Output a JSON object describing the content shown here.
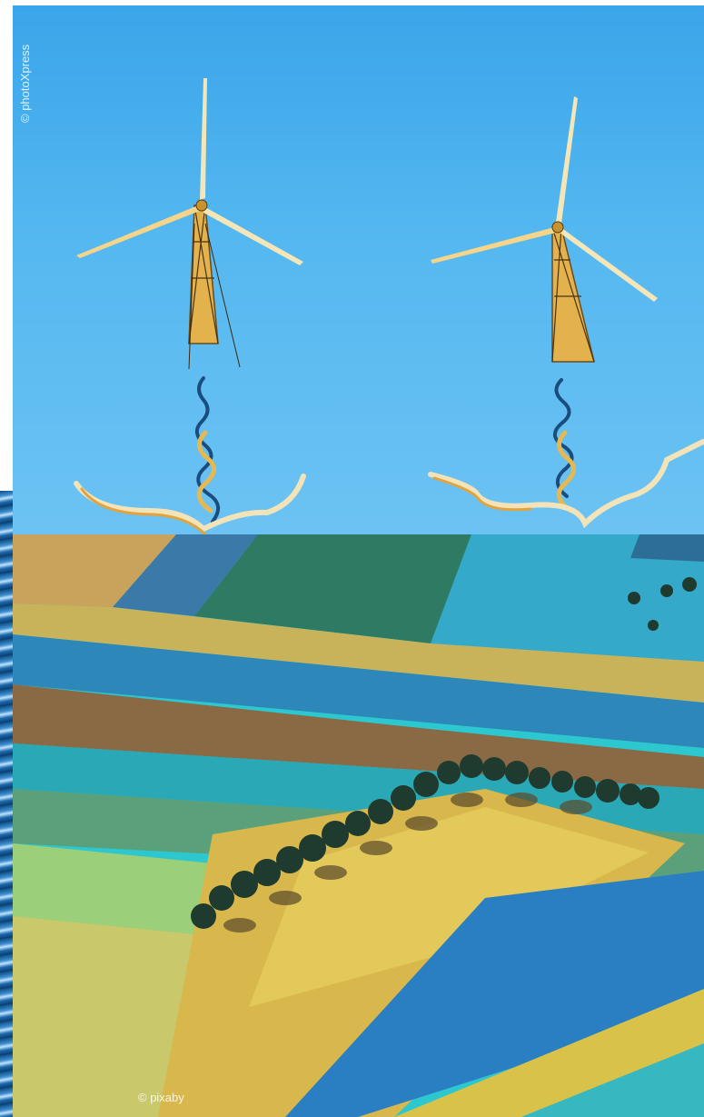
{
  "photo_top": {
    "credit": "© photoXpress"
  },
  "photo_bottom": {
    "credit": "© pixaby"
  },
  "colors": {
    "sky": "#55b8f0",
    "turbine": "#e8b850",
    "field_yellow": "#d9c24a",
    "field_teal": "#2cc7cf",
    "field_blue": "#2a7fc2",
    "field_brown": "#8a6a45",
    "trees": "#1f3a2e"
  }
}
